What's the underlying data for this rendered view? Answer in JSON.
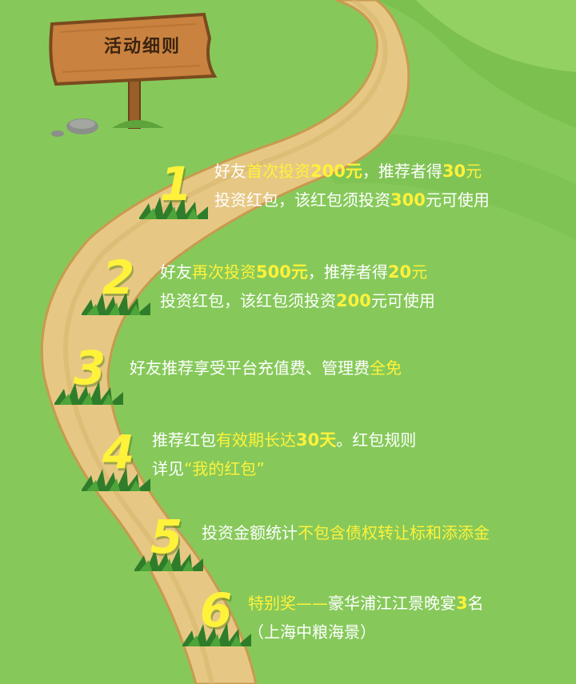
{
  "sign": {
    "title": "活动细则"
  },
  "rules": [
    {
      "number": "1",
      "line1": [
        {
          "t": "好友"
        },
        {
          "t": "首次投资",
          "hl": true
        },
        {
          "t": "200元",
          "hl": true,
          "b": true
        },
        {
          "t": "，推荐者得"
        },
        {
          "t": "30",
          "hl": true,
          "b": true
        },
        {
          "t": "元",
          "hl": true
        }
      ],
      "line2": [
        {
          "t": "投资红包，该红包须投资"
        },
        {
          "t": "300",
          "hl": true,
          "b": true
        },
        {
          "t": "元可使用"
        }
      ]
    },
    {
      "number": "2",
      "line1": [
        {
          "t": "好友"
        },
        {
          "t": "再次投资",
          "hl": true
        },
        {
          "t": "500元",
          "hl": true,
          "b": true
        },
        {
          "t": "，推荐者得"
        },
        {
          "t": "20",
          "hl": true,
          "b": true
        },
        {
          "t": "元",
          "hl": true
        }
      ],
      "line2": [
        {
          "t": "投资红包，该红包须投资"
        },
        {
          "t": "200",
          "hl": true,
          "b": true
        },
        {
          "t": "元可使用"
        }
      ]
    },
    {
      "number": "3",
      "line1": [
        {
          "t": "好友推荐享受平台充值费、管理费"
        },
        {
          "t": "全免",
          "hl": true
        }
      ],
      "line2": []
    },
    {
      "number": "4",
      "line1": [
        {
          "t": "推荐红包"
        },
        {
          "t": "有效期长达",
          "hl": true
        },
        {
          "t": "30天",
          "hl": true,
          "b": true
        },
        {
          "t": "。红包规则"
        }
      ],
      "line2": [
        {
          "t": "详见"
        },
        {
          "t": "“我的红包”",
          "hl": true
        }
      ]
    },
    {
      "number": "5",
      "line1": [
        {
          "t": "投资金额统计"
        },
        {
          "t": "不包含债权转让标和添添金",
          "hl": true
        }
      ],
      "line2": []
    },
    {
      "number": "6",
      "line1": [
        {
          "t": "特别奖——",
          "hl": true
        },
        {
          "t": "豪华浦江江景晚宴"
        },
        {
          "t": "3",
          "hl": true,
          "b": true
        },
        {
          "t": "名"
        }
      ],
      "line2": [
        {
          "t": "（上海中粮海景）"
        }
      ]
    }
  ]
}
